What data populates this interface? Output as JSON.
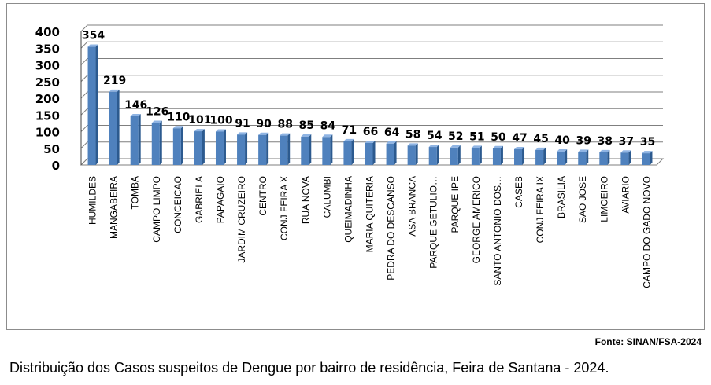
{
  "chart_data": {
    "type": "bar",
    "title": "",
    "xlabel": "",
    "ylabel": "",
    "ylim": [
      0,
      400
    ],
    "yticks": [
      0,
      50,
      100,
      150,
      200,
      250,
      300,
      350,
      400
    ],
    "grid": true,
    "categories": [
      "HUMILDES",
      "MANGABEIRA",
      "TOMBA",
      "CAMPO LIMPO",
      "CONCEICAO",
      "GABRIELA",
      "PAPAGAIO",
      "JARDIM CRUZEIRO",
      "CENTRO",
      "CONJ FEIRA X",
      "RUA NOVA",
      "CALUMBI",
      "QUEIMADINHA",
      "MARIA QUITERIA",
      "PEDRA DO DESCANSO",
      "ASA BRANCA",
      "PARQUE GETULIO…",
      "PARQUE IPE",
      "GEORGE AMERICO",
      "SANTO ANTONIO DOS…",
      "CASEB",
      "CONJ FEIRA IX",
      "BRASILIA",
      "SAO JOSE",
      "LIMOEIRO",
      "AVIARIO",
      "CAMPO DO GADO NOVO"
    ],
    "values": [
      354,
      219,
      146,
      126,
      110,
      101,
      100,
      91,
      90,
      88,
      85,
      84,
      71,
      66,
      64,
      58,
      54,
      52,
      51,
      50,
      47,
      45,
      40,
      39,
      38,
      37,
      35
    ],
    "colors": {
      "bar_front": "#4f81bd",
      "bar_side": "#2c5a8f",
      "bar_top": "#8fb4e3",
      "grid": "#7f7f7f"
    }
  },
  "source_note": "Fonte: SINAN/FSA-2024",
  "caption": "Distribuição dos Casos suspeitos de Dengue por bairro de residência, Feira de Santana - 2024."
}
